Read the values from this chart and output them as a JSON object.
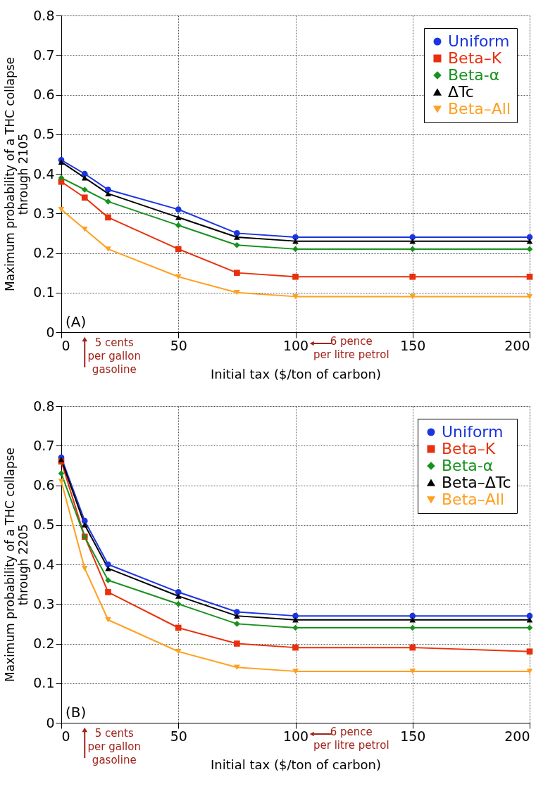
{
  "chart_data": [
    {
      "type": "line",
      "xlabel": "Initial tax  ($/ton of carbon)",
      "ylabel": "Maximum probability of a THC collapse\nthrough 2105",
      "x": [
        0,
        10,
        20,
        50,
        75,
        100,
        150,
        200
      ],
      "series": [
        {
          "name": "Uniform",
          "color": "#1a35e0",
          "marker": "circle",
          "values": [
            0.435,
            0.4,
            0.36,
            0.31,
            0.25,
            0.24,
            0.24,
            0.24
          ]
        },
        {
          "name": "Beta–K",
          "color": "#e8300c",
          "marker": "square",
          "values": [
            0.38,
            0.34,
            0.29,
            0.21,
            0.15,
            0.14,
            0.14,
            0.14
          ]
        },
        {
          "name": "Beta-α",
          "color": "#17921e",
          "marker": "diamond",
          "values": [
            0.39,
            0.36,
            0.33,
            0.27,
            0.22,
            0.21,
            0.21,
            0.21
          ]
        },
        {
          "name": "ΔTc",
          "color": "#000000",
          "marker": "triangle",
          "values": [
            0.43,
            0.39,
            0.35,
            0.29,
            0.24,
            0.23,
            0.23,
            0.23
          ]
        },
        {
          "name": "Beta–All",
          "color": "#ffa020",
          "marker": "triangle-down",
          "values": [
            0.31,
            0.26,
            0.21,
            0.14,
            0.1,
            0.09,
            0.09,
            0.09
          ]
        }
      ],
      "xlim": [
        0,
        200
      ],
      "xticks": [
        0,
        50,
        100,
        150,
        200
      ],
      "ylim": [
        0,
        0.8
      ],
      "yticks": [
        0,
        0.1,
        0.2,
        0.3,
        0.4,
        0.5,
        0.6,
        0.7,
        0.8
      ],
      "grid": true,
      "legend": "top right",
      "line_style": "solid",
      "annotations": [
        "(A)",
        "5 cents\nper gallon\ngasoline",
        "6 pence\nper litre petrol"
      ]
    },
    {
      "type": "line",
      "xlabel": "Initial tax  ($/ton of carbon)",
      "ylabel": "Maximum probability of a THC collapse\nthrough 2205",
      "x": [
        0,
        10,
        20,
        50,
        75,
        100,
        150,
        200
      ],
      "series": [
        {
          "name": "Uniform",
          "color": "#1a35e0",
          "marker": "circle",
          "values": [
            0.67,
            0.51,
            0.4,
            0.33,
            0.28,
            0.27,
            0.27,
            0.27
          ]
        },
        {
          "name": "Beta–K",
          "color": "#e8300c",
          "marker": "square",
          "values": [
            0.66,
            0.47,
            0.33,
            0.24,
            0.2,
            0.19,
            0.19,
            0.18
          ]
        },
        {
          "name": "Beta-α",
          "color": "#17921e",
          "marker": "diamond",
          "values": [
            0.63,
            0.47,
            0.36,
            0.3,
            0.25,
            0.24,
            0.24,
            0.24
          ]
        },
        {
          "name": "Beta–ΔTc",
          "color": "#000000",
          "marker": "triangle",
          "values": [
            0.665,
            0.5,
            0.39,
            0.32,
            0.27,
            0.26,
            0.26,
            0.26
          ]
        },
        {
          "name": "Beta–All",
          "color": "#ffa020",
          "marker": "triangle-down",
          "values": [
            0.61,
            0.39,
            0.26,
            0.18,
            0.14,
            0.13,
            0.13,
            0.13
          ]
        }
      ],
      "xlim": [
        0,
        200
      ],
      "xticks": [
        0,
        50,
        100,
        150,
        200
      ],
      "ylim": [
        0,
        0.8
      ],
      "yticks": [
        0,
        0.1,
        0.2,
        0.3,
        0.4,
        0.5,
        0.6,
        0.7,
        0.8
      ],
      "grid": true,
      "legend": "top right",
      "line_style": "solid",
      "annotations": [
        "(B)",
        "5 cents\nper gallon\ngasoline",
        "6 pence\nper litre petrol"
      ]
    }
  ]
}
